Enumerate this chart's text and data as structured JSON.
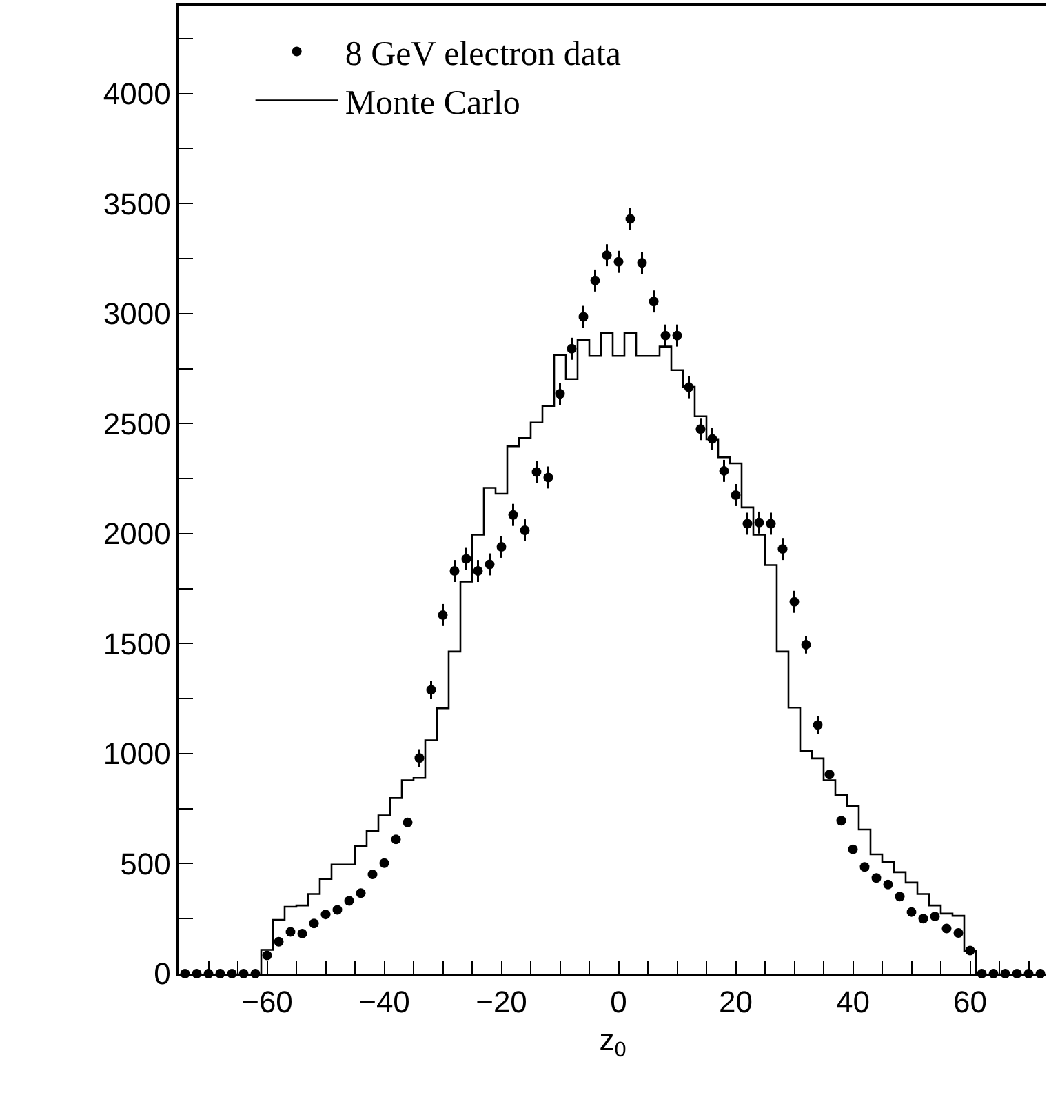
{
  "chart_data": {
    "type": "scatter",
    "xlabel": "z$_{0}$",
    "legend": "top left",
    "marker": "circle",
    "xlim": [
      -75,
      73
    ],
    "ylim": [
      0,
      4400
    ],
    "xticks": [
      {
        "value": -70,
        "label": null
      },
      {
        "value": -65,
        "label": null
      },
      {
        "value": -60,
        "label": "−60"
      },
      {
        "value": -55,
        "label": null
      },
      {
        "value": -50,
        "label": null
      },
      {
        "value": -45,
        "label": null
      },
      {
        "value": -40,
        "label": "−40"
      },
      {
        "value": -35,
        "label": null
      },
      {
        "value": -30,
        "label": null
      },
      {
        "value": -25,
        "label": null
      },
      {
        "value": -20,
        "label": "−20"
      },
      {
        "value": -15,
        "label": null
      },
      {
        "value": -10,
        "label": null
      },
      {
        "value": -5,
        "label": null
      },
      0,
      {
        "value": 5,
        "label": null
      },
      {
        "value": 10,
        "label": null
      },
      {
        "value": 15,
        "label": null
      },
      20,
      {
        "value": 25,
        "label": null
      },
      {
        "value": 30,
        "label": null
      },
      {
        "value": 35,
        "label": null
      },
      40,
      {
        "value": 45,
        "label": null
      },
      {
        "value": 50,
        "label": null
      },
      {
        "value": 55,
        "label": null
      },
      60,
      {
        "value": 65,
        "label": null
      },
      {
        "value": 70,
        "label": null
      }
    ],
    "yticks": [
      0,
      {
        "value": 250,
        "label": null
      },
      500,
      {
        "value": 750,
        "label": null
      },
      1000,
      {
        "value": 1250,
        "label": null
      },
      1500,
      {
        "value": 1750,
        "label": null
      },
      2000,
      {
        "value": 2250,
        "label": null
      },
      2500,
      {
        "value": 2750,
        "label": null
      },
      3000,
      {
        "value": 3250,
        "label": null
      },
      3500,
      {
        "value": 3750,
        "label": null
      },
      4000,
      {
        "value": 4250,
        "label": null
      }
    ],
    "series": [
      {
        "name": "8 GeV electron data",
        "color": "#000000",
        "x": [
          -74,
          -72,
          -70,
          -68,
          -66,
          -64,
          -62,
          -60,
          -58,
          -56,
          -54,
          -52,
          -50,
          -48,
          -46,
          -44,
          -42,
          -40,
          -38,
          -36,
          -34,
          -32,
          -30,
          -28,
          -26,
          -24,
          -22,
          -20,
          -18,
          -16,
          -14,
          -12,
          -10,
          -8,
          -6,
          -4,
          -2,
          0,
          2,
          4,
          6,
          8,
          10,
          12,
          14,
          16,
          18,
          20,
          22,
          24,
          26,
          28,
          30,
          32,
          34,
          36,
          38,
          40,
          42,
          44,
          46,
          48,
          50,
          52,
          54,
          56,
          58,
          60,
          62,
          64,
          66,
          68,
          70,
          72
        ],
        "values": [
          0,
          0,
          0,
          0,
          0,
          0,
          0,
          83,
          145,
          190,
          182,
          228,
          269,
          290,
          331,
          366,
          451,
          502,
          610,
          687,
          980,
          1290,
          1630,
          1830,
          1885,
          1830,
          1860,
          1940,
          2085,
          2015,
          2280,
          2255,
          2635,
          2840,
          2985,
          3150,
          3265,
          3235,
          3430,
          3230,
          3055,
          2900,
          2900,
          2665,
          2475,
          2430,
          2285,
          2175,
          2045,
          2050,
          2045,
          1930,
          1690,
          1495,
          1130,
          905,
          695,
          565,
          485,
          435,
          405,
          350,
          280,
          250,
          260,
          205,
          185,
          105,
          0,
          0,
          0,
          0,
          0,
          0
        ],
        "errors": [
          null,
          null,
          null,
          null,
          null,
          null,
          null,
          null,
          null,
          null,
          null,
          null,
          null,
          null,
          null,
          null,
          null,
          null,
          null,
          null,
          40,
          40,
          50,
          50,
          50,
          50,
          50,
          50,
          50,
          50,
          50,
          50,
          50,
          50,
          50,
          50,
          50,
          50,
          50,
          50,
          50,
          50,
          50,
          50,
          50,
          50,
          50,
          50,
          50,
          50,
          50,
          50,
          50,
          40,
          40,
          null,
          null,
          null,
          null,
          null,
          null,
          null,
          null,
          null,
          null,
          null,
          null,
          null,
          null,
          null,
          null,
          null,
          null,
          null
        ]
      },
      {
        "name": "Monte Carlo",
        "type": "histogram",
        "color": "#000000",
        "bins": [
          -61,
          -59,
          -57,
          -55,
          -53,
          -51,
          -49,
          -47,
          -45,
          -43,
          -41,
          -39,
          -37,
          -35,
          -33,
          -31,
          -29,
          -27,
          -25,
          -23,
          -21,
          -19,
          -17,
          -15,
          -13,
          -11,
          -9,
          -7,
          -5,
          -3,
          -1,
          1,
          3,
          5,
          7,
          9,
          11,
          13,
          15,
          17,
          19,
          21,
          23,
          25,
          27,
          29,
          31,
          33,
          35,
          37,
          39,
          41,
          43,
          45,
          47,
          49,
          51,
          53,
          55,
          57,
          59,
          61
        ],
        "values": [
          108,
          244,
          304,
          310,
          362,
          430,
          496,
          496,
          579,
          649,
          719,
          798,
          879,
          889,
          1061,
          1206,
          1464,
          1782,
          1995,
          2208,
          2181,
          2397,
          2434,
          2505,
          2580,
          2812,
          2702,
          2880,
          2807,
          2911,
          2807,
          2911,
          2807,
          2807,
          2850,
          2743,
          2667,
          2533,
          2429,
          2347,
          2319,
          2119,
          1995,
          1857,
          1464,
          1209,
          1013,
          978,
          879,
          811,
          761,
          655,
          542,
          507,
          461,
          414,
          362,
          310,
          273,
          263,
          104
        ]
      }
    ]
  }
}
